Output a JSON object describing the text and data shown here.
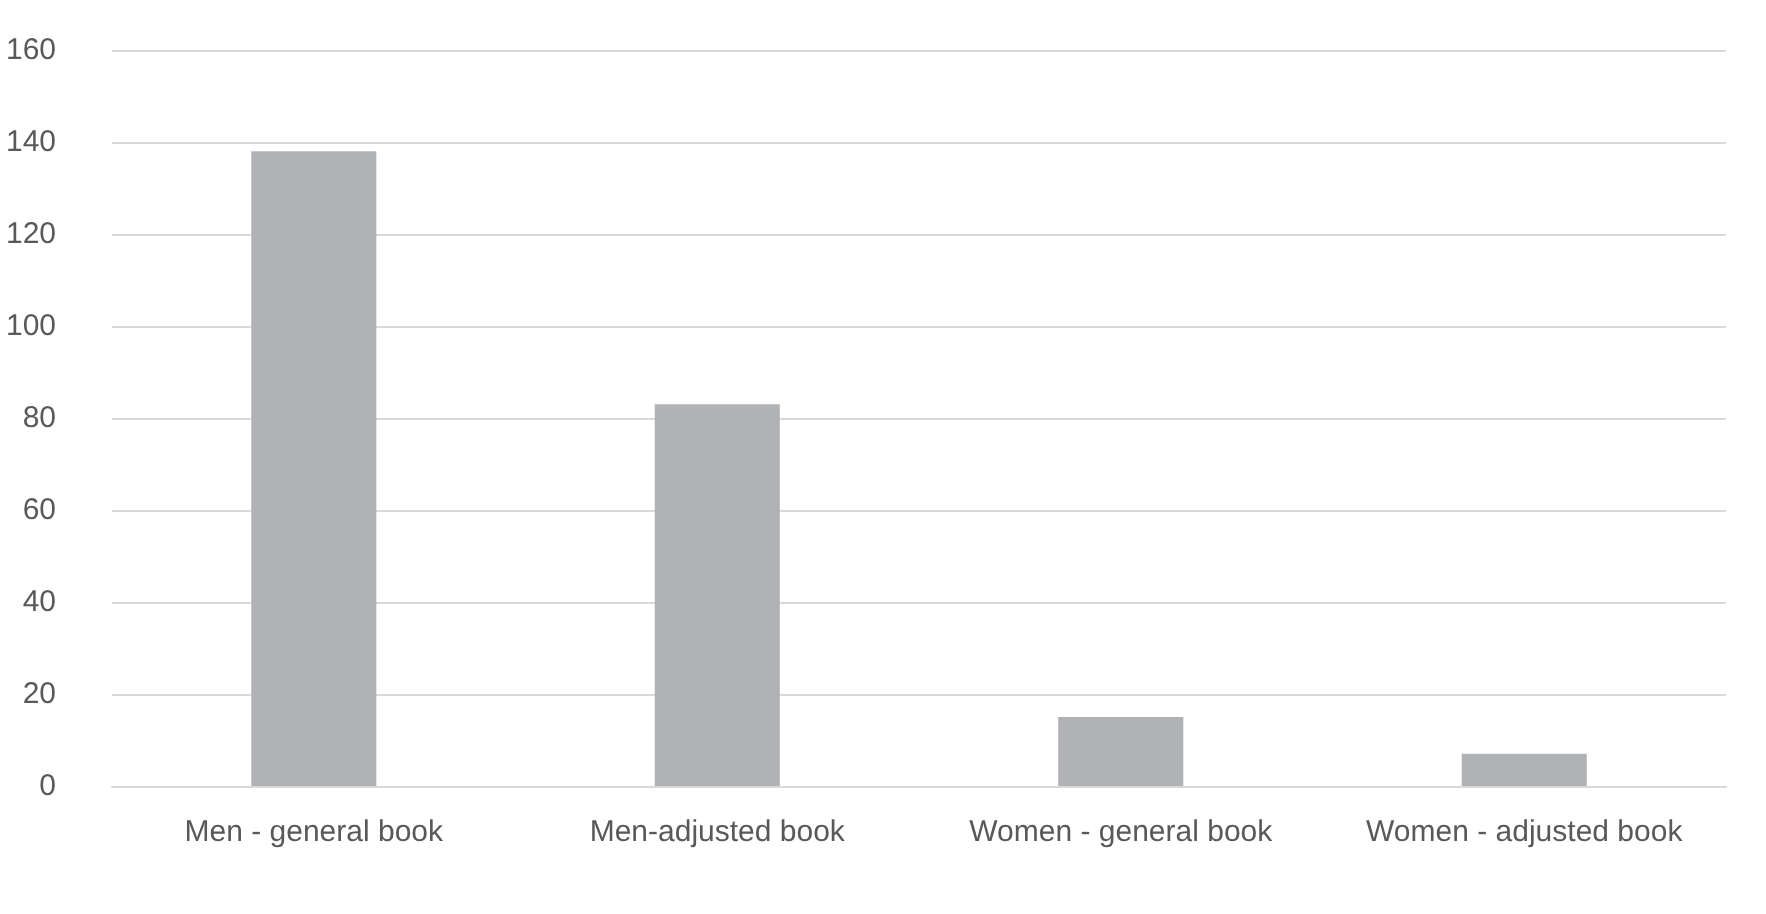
{
  "chart_data": {
    "type": "bar",
    "categories": [
      "Men - general book",
      "Men-adjusted book",
      "Women - general book",
      "Women - adjusted book"
    ],
    "values": [
      138,
      83,
      15,
      7
    ],
    "color": "#b1b2b6",
    "ylim": [
      0,
      160
    ],
    "yticks": [
      0,
      20,
      40,
      60,
      80,
      100,
      120,
      140,
      160
    ],
    "grid": "y"
  }
}
